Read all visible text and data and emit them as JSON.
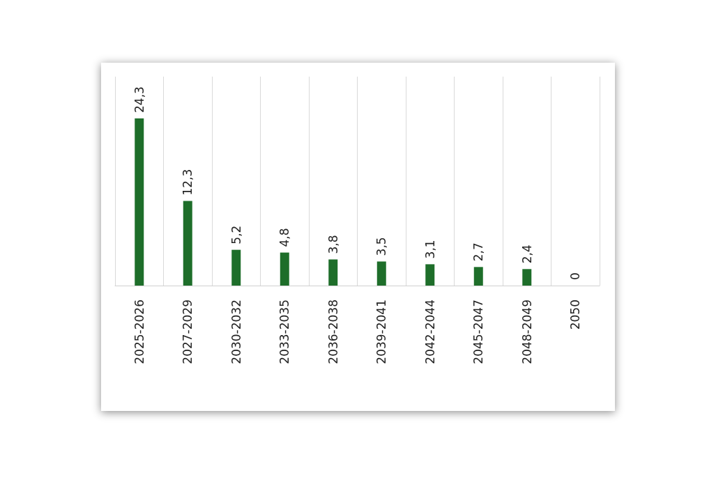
{
  "chart_data": {
    "type": "bar",
    "categories": [
      "2025-2026",
      "2027-2029",
      "2030-2032",
      "2033-2035",
      "2036-2038",
      "2039-2041",
      "2042-2044",
      "2045-2047",
      "2048-2049",
      "2050"
    ],
    "values": [
      24.3,
      12.3,
      5.2,
      4.8,
      3.8,
      3.5,
      3.1,
      2.7,
      2.4,
      0
    ],
    "value_labels": [
      "24,3",
      "12,3",
      "5,2",
      "4,8",
      "3,8",
      "3,5",
      "3,1",
      "2,7",
      "2,4",
      "0"
    ],
    "color": "#1e6e2a",
    "grid": "x"
  }
}
